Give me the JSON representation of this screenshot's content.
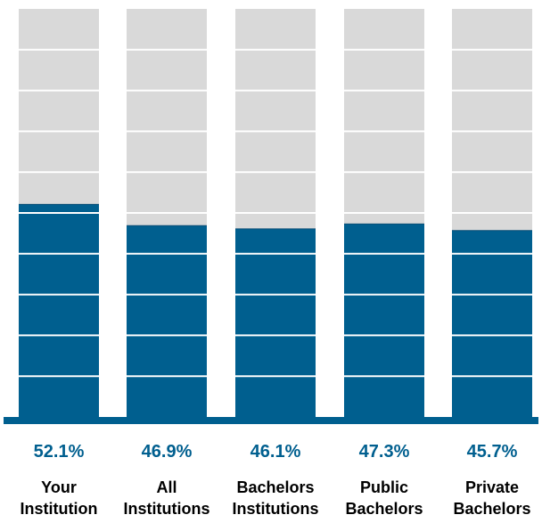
{
  "chart_data": {
    "type": "bar",
    "categories": [
      [
        "Your",
        "Institution"
      ],
      [
        "All",
        "Institutions"
      ],
      [
        "Bachelors",
        "Institutions"
      ],
      [
        "Public",
        "Bachelors"
      ],
      [
        "Private",
        "Bachelors"
      ]
    ],
    "values": [
      52.1,
      46.9,
      46.1,
      47.3,
      45.7
    ],
    "value_labels": [
      "52.1%",
      "46.9%",
      "46.1%",
      "47.3%",
      "45.7%"
    ],
    "ylim": [
      0,
      100
    ],
    "grid": true,
    "stacked_background": true,
    "title": "",
    "xlabel": "",
    "ylabel": ""
  },
  "colors": {
    "bar_fill": "#005f8f",
    "bar_background": "#d9d9d9",
    "label_color": "#005f8f",
    "gridline": "#ffffff",
    "baseline": "#005f8f"
  }
}
